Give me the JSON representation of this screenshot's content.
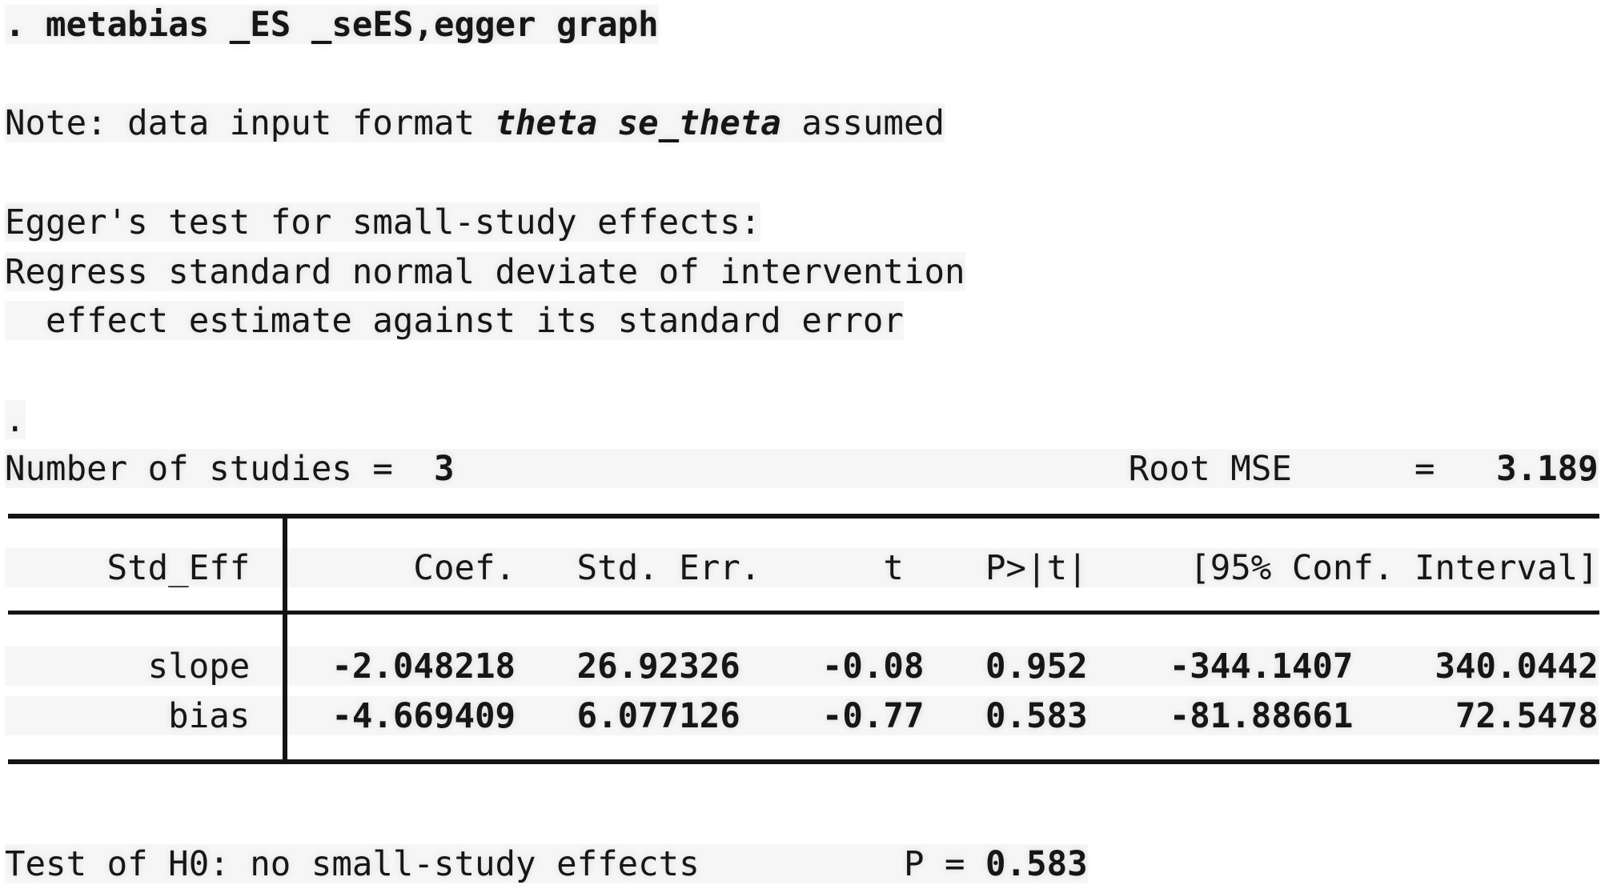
{
  "colors": {
    "background": "#ffffff",
    "text": "#161616",
    "table_rule": "#141414"
  },
  "console": {
    "command": {
      "prompt": ". ",
      "text": "metabias _ES _seES,egger graph"
    },
    "note": {
      "prefix": "Note: data input format ",
      "emphasis": "theta se_theta",
      "suffix": " assumed"
    },
    "egger": {
      "title": "Egger's test for small-study effects:",
      "desc_line1": "Regress standard normal deviate of intervention",
      "desc_line2": "  effect estimate against its standard error"
    },
    "continuation_dot": ".",
    "summary": {
      "n_label": "Number of studies =  ",
      "n_value": "3",
      "rmse_label": "                                 Root MSE      =   ",
      "rmse_value": "3.189"
    },
    "table": {
      "header_text": "     Std_Eff        Coef.   Std. Err.      t    P>|t|     [95% Conf. Interval]",
      "rows": [
        {
          "label_cell": "       slope    ",
          "values_text": "-2.048218   26.92326    -0.08   0.952    -344.1407    340.0442"
        },
        {
          "label_cell": "        bias    ",
          "values_text": "-4.669409   6.077126    -0.77   0.583    -81.88661     72.5478"
        }
      ],
      "columns": [
        "Std_Eff",
        "Coef.",
        "Std. Err.",
        "t",
        "P>|t|",
        "[95% Conf. Interval]"
      ],
      "data": [
        {
          "std_eff": "slope",
          "coef": -2.048218,
          "std_err": 26.92326,
          "t": -0.08,
          "p": 0.952,
          "ci_low": -344.1407,
          "ci_high": 340.0442
        },
        {
          "std_eff": "bias",
          "coef": -4.669409,
          "std_err": 6.077126,
          "t": -0.77,
          "p": 0.583,
          "ci_low": -81.88661,
          "ci_high": 72.5478
        }
      ]
    },
    "stats": {
      "number_of_studies": 3,
      "root_mse": 3.189
    },
    "h0_test": {
      "label": "Test of H0: no small-study effects          P = ",
      "p_value": "0.583"
    }
  }
}
